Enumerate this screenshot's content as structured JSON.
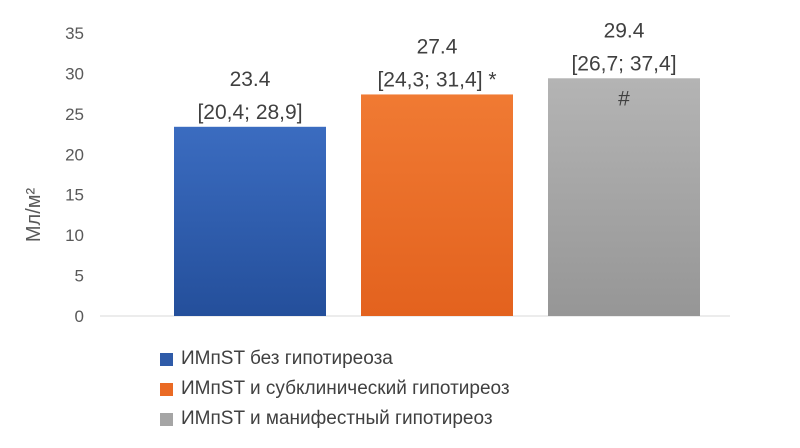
{
  "chart_data": {
    "type": "bar",
    "ylabel": "Мл/м²",
    "ylim": [
      0,
      35
    ],
    "yticks": [
      "0",
      "5",
      "10",
      "15",
      "20",
      "25",
      "30",
      "35"
    ],
    "grid": false,
    "legend_position": "bottom",
    "series": [
      {
        "name": "ИМпST без гипотиреоза",
        "value": 23.4,
        "value_label": "23.4",
        "ci_label": "[20,4; 28,9]",
        "marker": "",
        "color": "#2f5ba8"
      },
      {
        "name": "ИМпST и субклинический гипотиреоз",
        "value": 27.4,
        "value_label": "27.4",
        "ci_label": "[24,3; 31,4]",
        "marker": "*",
        "color": "#ea6a24"
      },
      {
        "name": "ИМпST и манифестный гипотиреоз",
        "value": 29.4,
        "value_label": "29.4",
        "ci_label": "[26,7; 37,4]",
        "marker": "#",
        "color": "#a5a5a5"
      }
    ]
  }
}
